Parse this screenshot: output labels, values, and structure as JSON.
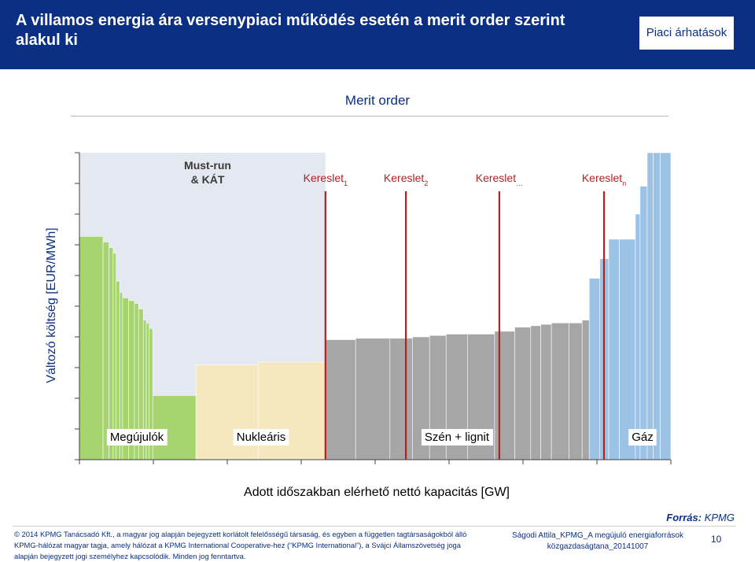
{
  "header": {
    "title": "A villamos energia ára versenypiaci működés esetén a merit order szerint alakul ki",
    "badge": "Piaci árhatások"
  },
  "chart_data": {
    "type": "bar",
    "title": "Merit order",
    "xlabel": "Adott időszakban elérhető nettó kapacitás [GW]",
    "ylabel": "Változó költség [EUR/MWh]",
    "must_run_label": [
      "Must-run",
      "& KÁT"
    ],
    "demand_lines": [
      {
        "base": "Kereslet",
        "sub": "1",
        "x": 41.6
      },
      {
        "base": "Kereslet",
        "sub": "2",
        "x": 55.2
      },
      {
        "base": "Kereslet",
        "sub": "…",
        "x": 71.0
      },
      {
        "base": "Kereslet",
        "sub": "n",
        "x": 88.7
      }
    ],
    "fuel_groups": [
      {
        "name": "Megújulók",
        "color": "#a6d46e",
        "segments": [
          [
            0.0,
            4.0,
            70
          ],
          [
            4.0,
            5.0,
            68
          ],
          [
            5.0,
            5.7,
            66
          ],
          [
            5.7,
            6.2,
            64
          ],
          [
            6.2,
            6.8,
            54
          ],
          [
            6.8,
            7.3,
            50
          ],
          [
            7.3,
            8.3,
            48
          ],
          [
            8.3,
            9.3,
            47
          ],
          [
            9.3,
            10.0,
            46
          ],
          [
            10.0,
            10.8,
            44
          ],
          [
            10.8,
            11.3,
            40
          ],
          [
            11.3,
            11.8,
            39
          ],
          [
            11.8,
            12.4,
            37
          ],
          [
            12.4,
            19.7,
            13
          ]
        ]
      },
      {
        "name": "Nukleáris",
        "color": "#f5e8bf",
        "segments": [
          [
            19.7,
            30.2,
            24
          ],
          [
            30.2,
            41.6,
            25
          ]
        ]
      },
      {
        "name": "Szén + lignit",
        "color": "#a6a6a6",
        "segments": [
          [
            41.6,
            46.7,
            33
          ],
          [
            46.7,
            52.5,
            33.5
          ],
          [
            52.5,
            56.3,
            33.5
          ],
          [
            56.3,
            59.2,
            34
          ],
          [
            59.2,
            62.0,
            34.5
          ],
          [
            62.0,
            65.6,
            35
          ],
          [
            65.6,
            70.2,
            35
          ],
          [
            70.2,
            73.6,
            36
          ],
          [
            73.6,
            76.3,
            37.5
          ],
          [
            76.3,
            78.0,
            38
          ],
          [
            78.0,
            79.8,
            38.5
          ],
          [
            79.8,
            82.8,
            39
          ],
          [
            82.8,
            85.0,
            39
          ],
          [
            85.0,
            86.2,
            40
          ]
        ]
      },
      {
        "name": "Gáz",
        "color": "#9cc3e6",
        "segments": [
          [
            86.2,
            88.0,
            55
          ],
          [
            88.0,
            89.5,
            62
          ],
          [
            89.5,
            91.3,
            69
          ],
          [
            91.3,
            94.0,
            69
          ],
          [
            94.0,
            94.8,
            78
          ],
          [
            94.8,
            96.0,
            88
          ],
          [
            96.0,
            97.0,
            100
          ],
          [
            97.0,
            98.2,
            100
          ],
          [
            98.2,
            100.0,
            100
          ]
        ]
      }
    ],
    "xlim": [
      0,
      100
    ],
    "ylim": [
      -10,
      100
    ],
    "grid": false,
    "legend": "bottom"
  },
  "footer": {
    "source_label": "Forrás:",
    "source_value": "KPMG",
    "legal": [
      "© 2014 KPMG Tanácsadó Kft., a magyar jog alapján bejegyzett korlátolt felelősségű társaság, és egyben a független tagtársaságokból álló",
      "KPMG-hálózat magyar tagja, amely hálózat a KPMG International Cooperative-hez (“KPMG International”), a Svájci Államszövetség joga",
      "alapján bejegyzett jogi személyhez kapcsolódik. Minden jog fenntartva."
    ],
    "presenter": [
      "Ságodi Attila_KPMG_A megújuló energiaforrások",
      "közgazdaságtana_20141007"
    ],
    "page_number": "10"
  },
  "colors": {
    "brand": "#0a2f83",
    "demand_line": "#b32121",
    "must_run_bg": "#e4e8f1"
  }
}
